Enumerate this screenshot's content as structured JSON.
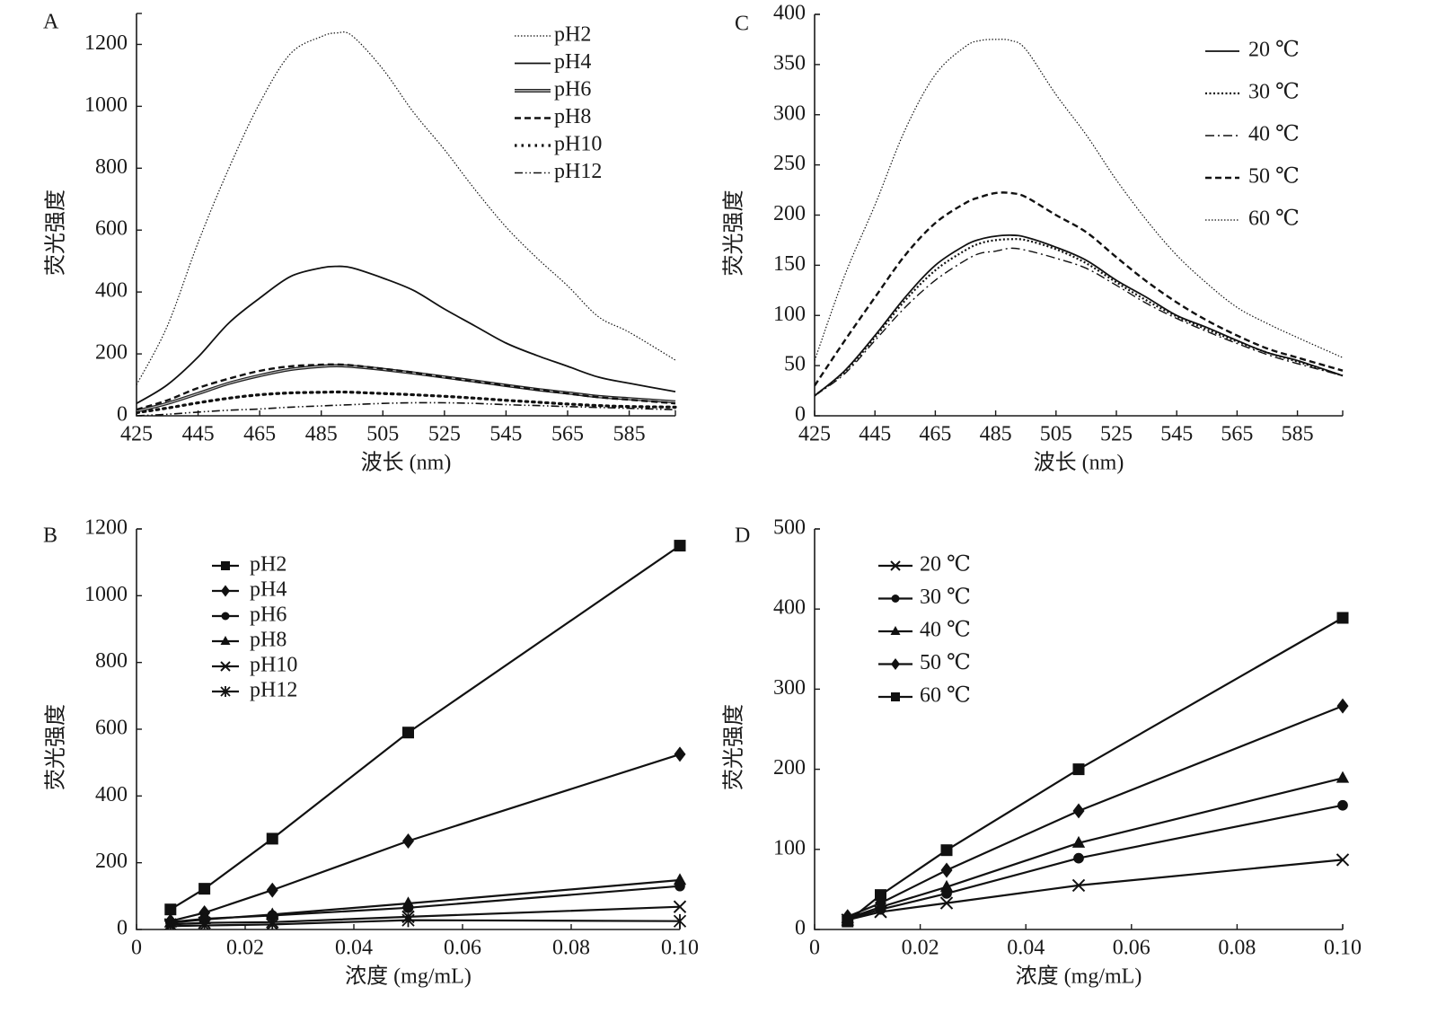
{
  "figure": {
    "panels": [
      "A",
      "B",
      "C",
      "D"
    ]
  },
  "chart_data": [
    {
      "id": "A",
      "panel_label": "A",
      "type": "line",
      "title": "",
      "xlabel": "波长 (nm)",
      "ylabel": "荧光强度",
      "xlim": [
        425,
        600
      ],
      "ylim": [
        0,
        1300
      ],
      "xticks": [
        425,
        445,
        465,
        485,
        505,
        525,
        545,
        565,
        585
      ],
      "yticks": [
        0,
        200,
        400,
        600,
        800,
        1000,
        1200
      ],
      "grid": false,
      "legend_position": "top-right",
      "x": [
        425,
        435,
        445,
        455,
        465,
        475,
        485,
        490,
        495,
        505,
        515,
        525,
        535,
        545,
        555,
        565,
        575,
        585,
        600
      ],
      "series": [
        {
          "name": "pH2",
          "style": "dotted-fine",
          "values": [
            100,
            290,
            560,
            800,
            1010,
            1170,
            1225,
            1237,
            1228,
            1120,
            980,
            860,
            730,
            610,
            510,
            420,
            320,
            270,
            180
          ]
        },
        {
          "name": "pH4",
          "style": "solid",
          "values": [
            40,
            100,
            190,
            300,
            380,
            450,
            478,
            483,
            478,
            445,
            405,
            345,
            290,
            235,
            195,
            160,
            125,
            105,
            78
          ]
        },
        {
          "name": "pH6",
          "style": "double",
          "values": [
            15,
            40,
            72,
            105,
            130,
            150,
            160,
            162,
            160,
            150,
            138,
            125,
            112,
            98,
            85,
            74,
            62,
            55,
            45
          ]
        },
        {
          "name": "pH8",
          "style": "dashed",
          "values": [
            20,
            50,
            90,
            120,
            145,
            160,
            165,
            166,
            163,
            152,
            140,
            125,
            110,
            98,
            84,
            72,
            60,
            52,
            40
          ]
        },
        {
          "name": "pH10",
          "style": "dotted-bold",
          "values": [
            10,
            25,
            42,
            57,
            68,
            74,
            76,
            77,
            76,
            72,
            68,
            63,
            57,
            50,
            44,
            38,
            33,
            30,
            28
          ]
        },
        {
          "name": "pH12",
          "style": "dash-dot-dot",
          "values": [
            0,
            5,
            12,
            18,
            22,
            28,
            32,
            34,
            36,
            40,
            42,
            42,
            40,
            36,
            33,
            30,
            27,
            24,
            20
          ]
        }
      ]
    },
    {
      "id": "B",
      "panel_label": "B",
      "type": "line",
      "title": "",
      "xlabel": "浓度 (mg/mL)",
      "ylabel": "荧光强度",
      "xlim": [
        0,
        0.1
      ],
      "ylim": [
        0,
        1200
      ],
      "xticks": [
        "0",
        "0.02",
        "0.04",
        "0.06",
        "0.08",
        "0.10"
      ],
      "xtick_values": [
        0,
        0.02,
        0.04,
        0.06,
        0.08,
        0.1
      ],
      "yticks": [
        0,
        200,
        400,
        600,
        800,
        1000,
        1200
      ],
      "grid": false,
      "legend_position": "top-left",
      "x": [
        0.00625,
        0.0125,
        0.025,
        0.05,
        0.1
      ],
      "series": [
        {
          "name": "pH2",
          "marker": "square",
          "values": [
            60,
            122,
            272,
            590,
            1150
          ]
        },
        {
          "name": "pH4",
          "marker": "diamond",
          "values": [
            25,
            50,
            118,
            265,
            525
          ]
        },
        {
          "name": "pH6",
          "marker": "circle",
          "values": [
            22,
            32,
            42,
            65,
            130
          ]
        },
        {
          "name": "pH8",
          "marker": "triangle",
          "values": [
            20,
            30,
            45,
            78,
            148
          ]
        },
        {
          "name": "pH10",
          "marker": "x",
          "values": [
            15,
            20,
            22,
            38,
            68
          ]
        },
        {
          "name": "pH12",
          "marker": "star",
          "values": [
            10,
            12,
            15,
            28,
            25
          ]
        }
      ]
    },
    {
      "id": "C",
      "panel_label": "C",
      "type": "line",
      "title": "",
      "xlabel": "波长 (nm)",
      "ylabel": "荧光强度",
      "xlim": [
        425,
        600
      ],
      "ylim": [
        0,
        400
      ],
      "xticks": [
        425,
        445,
        465,
        485,
        505,
        525,
        545,
        565,
        585
      ],
      "yticks": [
        0,
        50,
        100,
        150,
        200,
        250,
        300,
        350,
        400
      ],
      "grid": false,
      "legend_position": "top-right",
      "x": [
        425,
        435,
        445,
        455,
        465,
        475,
        480,
        485,
        490,
        495,
        505,
        515,
        525,
        535,
        545,
        555,
        565,
        575,
        585,
        600
      ],
      "series": [
        {
          "name": "20 ℃",
          "style": "solid",
          "values": [
            20,
            45,
            80,
            118,
            150,
            170,
            176,
            179,
            180,
            178,
            168,
            155,
            135,
            118,
            100,
            88,
            75,
            63,
            55,
            40
          ]
        },
        {
          "name": "30 ℃",
          "style": "dotted",
          "values": [
            20,
            44,
            78,
            115,
            145,
            165,
            172,
            175,
            176,
            175,
            166,
            152,
            133,
            115,
            99,
            86,
            74,
            63,
            54,
            40
          ]
        },
        {
          "name": "40 ℃",
          "style": "dash-dot",
          "values": [
            20,
            42,
            75,
            108,
            135,
            155,
            162,
            164,
            167,
            165,
            157,
            147,
            130,
            112,
            97,
            84,
            72,
            61,
            52,
            40
          ]
        },
        {
          "name": "50 ℃",
          "style": "dashed",
          "values": [
            30,
            75,
            118,
            160,
            192,
            212,
            218,
            222,
            222,
            218,
            200,
            183,
            158,
            134,
            113,
            95,
            80,
            67,
            58,
            45
          ]
        },
        {
          "name": "60 ℃",
          "style": "dotted-fine",
          "values": [
            55,
            140,
            210,
            285,
            340,
            368,
            374,
            375,
            374,
            365,
            320,
            280,
            235,
            195,
            160,
            132,
            108,
            92,
            78,
            58
          ]
        }
      ]
    },
    {
      "id": "D",
      "panel_label": "D",
      "type": "line",
      "title": "",
      "xlabel": "浓度 (mg/mL)",
      "ylabel": "荧光强度",
      "xlim": [
        0,
        0.1
      ],
      "ylim": [
        0,
        500
      ],
      "xticks": [
        "0",
        "0.02",
        "0.04",
        "0.06",
        "0.08",
        "0.10"
      ],
      "xtick_values": [
        0,
        0.02,
        0.04,
        0.06,
        0.08,
        0.1
      ],
      "yticks": [
        0,
        100,
        200,
        300,
        400,
        500
      ],
      "grid": false,
      "legend_position": "top-left",
      "x": [
        0.00625,
        0.0125,
        0.025,
        0.05,
        0.1
      ],
      "series": [
        {
          "name": "20 ℃",
          "marker": "x",
          "values": [
            12,
            22,
            33,
            55,
            87
          ]
        },
        {
          "name": "30 ℃",
          "marker": "circle",
          "values": [
            13,
            25,
            45,
            89,
            155
          ]
        },
        {
          "name": "40 ℃",
          "marker": "triangle",
          "values": [
            14,
            28,
            53,
            108,
            189
          ]
        },
        {
          "name": "50 ℃",
          "marker": "diamond",
          "values": [
            16,
            33,
            74,
            148,
            279
          ]
        },
        {
          "name": "60 ℃",
          "marker": "square",
          "values": [
            10,
            43,
            99,
            200,
            389
          ]
        }
      ]
    }
  ]
}
